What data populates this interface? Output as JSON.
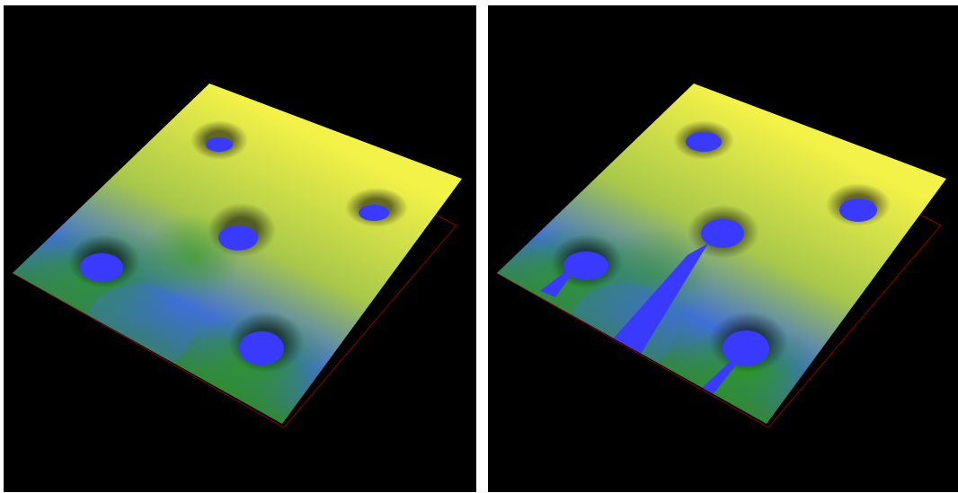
{
  "panels": [
    {
      "id": "left",
      "surface_colors": [
        "#2f8c1c",
        "#3f6fd6",
        "#a8c84a",
        "#f3f248"
      ],
      "pit_color": "#3a3aff",
      "outline_color": "#8b0000",
      "background": "#000000",
      "pit_count": 5,
      "channel_count": 0
    },
    {
      "id": "right",
      "surface_colors": [
        "#2f8c1c",
        "#3f6fd6",
        "#a8c84a",
        "#f3f248"
      ],
      "pit_color": "#3a3aff",
      "outline_color": "#8b0000",
      "background": "#000000",
      "pit_count": 5,
      "channel_count": 3
    }
  ]
}
